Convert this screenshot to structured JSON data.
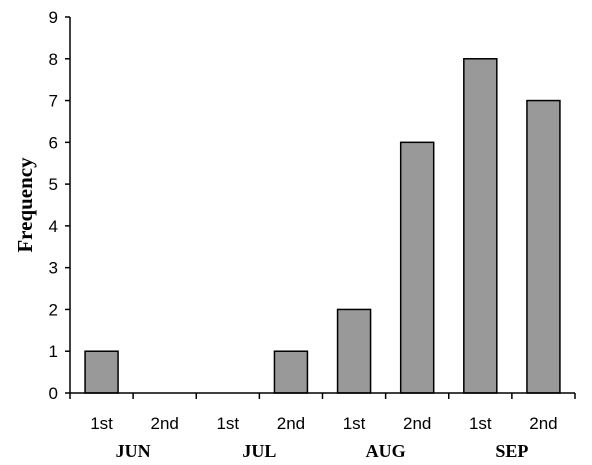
{
  "chart_data": {
    "type": "bar",
    "title": "",
    "xlabel": "",
    "ylabel": "Frequency",
    "ylim": [
      0,
      9
    ],
    "yticks": [
      0,
      1,
      2,
      3,
      4,
      5,
      6,
      7,
      8,
      9
    ],
    "categories": [
      "1st",
      "2nd",
      "1st",
      "2nd",
      "1st",
      "2nd",
      "1st",
      "2nd"
    ],
    "groups": [
      {
        "label": "JUN",
        "span": 2
      },
      {
        "label": "JUL",
        "span": 2
      },
      {
        "label": "AUG",
        "span": 2
      },
      {
        "label": "SEP",
        "span": 2
      }
    ],
    "values": [
      1,
      0,
      0,
      1,
      2,
      6,
      8,
      7
    ],
    "bar_color": "#999999",
    "bar_edge_color": "#000000",
    "grid": false,
    "legend": "none"
  }
}
